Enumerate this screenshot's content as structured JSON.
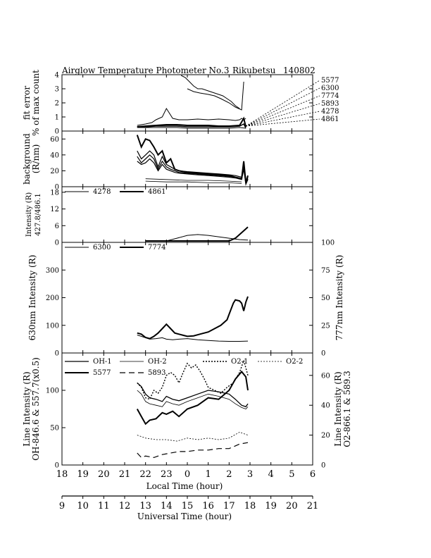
{
  "header": {
    "title": "Airglow Temperature Photometer No.3",
    "station": "Rikubetsu",
    "date": "140802"
  },
  "colors": {
    "ink": "#000000",
    "background": "#ffffff"
  },
  "chart_data": [
    {
      "id": "fit_error",
      "type": "line",
      "ylabel_lines": [
        "fit error",
        "% of max count"
      ],
      "ylim": [
        0,
        4
      ],
      "yticks": [
        "0",
        "1",
        "2",
        "3",
        "4"
      ],
      "grid": false,
      "legend_position": "right",
      "legend_labels": [
        "5577",
        "6300",
        "7774",
        "5893",
        "4278",
        "4861"
      ],
      "series": [
        {
          "name": "5577",
          "x": [
            21.6,
            22.0,
            22.3,
            22.5,
            22.8,
            23.0,
            23.3,
            23.6,
            24.0,
            24.5,
            25.0,
            25.5,
            26.0,
            26.3,
            26.5,
            26.6,
            26.7,
            26.8
          ],
          "y": [
            0.4,
            0.5,
            0.6,
            0.8,
            1.0,
            1.6,
            0.9,
            0.8,
            0.8,
            0.85,
            0.8,
            0.85,
            0.8,
            0.75,
            0.8,
            0.9,
            0.8,
            0.9
          ]
        },
        {
          "name": "6300",
          "x": [
            21.6,
            22.0,
            22.5,
            23.0,
            23.5,
            24.0,
            24.5,
            25.0,
            25.5,
            26.0,
            26.5,
            26.7,
            26.8
          ],
          "y": [
            0.3,
            0.35,
            0.4,
            0.45,
            0.45,
            0.4,
            0.4,
            0.4,
            0.35,
            0.35,
            0.4,
            0.9,
            0.3
          ]
        },
        {
          "name": "7774",
          "x": [
            21.6,
            22.0,
            22.5,
            23.0,
            23.5,
            24.0,
            24.5,
            25.0,
            25.5,
            26.0,
            26.5,
            26.7,
            26.8
          ],
          "y": [
            0.3,
            0.3,
            0.35,
            0.35,
            0.35,
            0.3,
            0.3,
            0.3,
            0.3,
            0.3,
            0.35,
            0.5,
            0.2
          ]
        },
        {
          "name": "5893",
          "x": [
            21.6,
            22.0,
            22.5,
            23.0,
            23.5,
            24.0,
            24.5,
            25.0,
            25.5,
            26.0,
            26.5,
            26.8
          ],
          "y": [
            0.25,
            0.25,
            0.25,
            0.25,
            0.25,
            0.2,
            0.2,
            0.2,
            0.2,
            0.2,
            0.25,
            0.2
          ]
        },
        {
          "name": "4278",
          "x": [
            24.0,
            24.3,
            24.6,
            25.0,
            25.3,
            25.6,
            26.0,
            26.3,
            26.6,
            26.7
          ],
          "y": [
            3.0,
            2.8,
            2.7,
            2.6,
            2.5,
            2.3,
            2.0,
            1.7,
            1.5,
            3.5
          ]
        },
        {
          "name": "4861",
          "x": [
            23.7,
            23.9,
            24.1,
            24.3,
            24.5,
            24.7,
            24.9,
            25.1,
            25.3,
            25.5,
            25.7,
            25.9,
            26.1,
            26.3,
            26.5
          ],
          "y": [
            4.0,
            3.8,
            3.5,
            3.2,
            3.0,
            3.0,
            2.9,
            2.8,
            2.7,
            2.6,
            2.5,
            2.3,
            2.1,
            1.8,
            1.6
          ]
        }
      ]
    },
    {
      "id": "background",
      "type": "line",
      "ylabel_lines": [
        "background",
        "(R/nm)"
      ],
      "ylim": [
        0,
        70
      ],
      "yticks": [
        "0",
        "20",
        "40",
        "60"
      ],
      "grid": false,
      "series": [
        {
          "name": "",
          "x": [
            21.6,
            21.8,
            22.0,
            22.2,
            22.4,
            22.6,
            22.8,
            23.0,
            23.2,
            23.4,
            23.6,
            24.0,
            24.5,
            25.0,
            25.5,
            26.0,
            26.3,
            26.6,
            26.7,
            26.8,
            26.9
          ],
          "y": [
            45,
            35,
            40,
            45,
            40,
            25,
            38,
            28,
            25,
            22,
            20,
            19,
            18,
            17,
            16,
            15,
            14,
            12,
            30,
            5,
            12
          ]
        },
        {
          "name": "",
          "x": [
            21.6,
            21.8,
            22.0,
            22.2,
            22.4,
            22.6,
            22.8,
            23.0,
            23.2,
            23.4,
            23.6,
            24.0,
            24.5,
            25.0,
            25.5,
            26.0,
            26.3,
            26.6,
            26.7,
            26.8,
            26.9
          ],
          "y": [
            38,
            30,
            35,
            40,
            35,
            22,
            32,
            25,
            22,
            20,
            18,
            17,
            16,
            15,
            14,
            13,
            12,
            10,
            25,
            4,
            10
          ]
        },
        {
          "name": "",
          "x": [
            21.6,
            21.8,
            22.0,
            22.2,
            22.4,
            22.6,
            22.8,
            23.0,
            23.2,
            23.4,
            23.6,
            24.0,
            24.5,
            25.0,
            25.5,
            26.0,
            26.3,
            26.6,
            26.7,
            26.8,
            26.9
          ],
          "y": [
            32,
            28,
            30,
            35,
            30,
            20,
            28,
            22,
            20,
            18,
            17,
            16,
            15,
            14,
            13,
            12,
            11,
            9,
            22,
            3,
            9
          ]
        },
        {
          "name": "",
          "x": [
            21.6,
            21.8,
            22.0,
            22.2,
            22.4,
            22.6,
            22.8,
            23.0,
            23.2,
            23.4,
            23.6,
            24.0,
            24.5,
            25.0,
            25.5,
            26.0,
            26.3,
            26.6,
            26.7,
            26.8,
            26.9
          ],
          "y": [
            65,
            50,
            60,
            58,
            50,
            40,
            45,
            30,
            35,
            22,
            20,
            18,
            17,
            16,
            15,
            14,
            12,
            10,
            32,
            5,
            14
          ]
        },
        {
          "name": "",
          "x": [
            22.0,
            23.0,
            24.0,
            25.0,
            26.0,
            26.6
          ],
          "y": [
            10,
            9,
            8,
            8,
            7,
            6
          ]
        },
        {
          "name": "",
          "x": [
            22.0,
            23.0,
            24.0,
            25.0,
            26.0,
            26.6
          ],
          "y": [
            7,
            6,
            6,
            5,
            5,
            4
          ]
        }
      ]
    },
    {
      "id": "blue_intensity",
      "type": "line",
      "ylabel_lines": [
        "Intensity (R)",
        "427.8/486.1"
      ],
      "ylim": [
        0,
        20
      ],
      "yticks": [
        "0",
        "6",
        "12",
        "18"
      ],
      "grid": false,
      "legend_position": "top",
      "series": [
        {
          "name": "4278",
          "x": [
            22.0,
            22.5,
            23.0,
            23.5,
            24.0,
            24.5,
            25.0,
            25.5,
            26.0,
            26.5,
            26.9
          ],
          "y": [
            0.5,
            0.5,
            0.5,
            1.5,
            2.5,
            2.8,
            2.5,
            2.0,
            1.5,
            1.0,
            0.8
          ]
        },
        {
          "name": "4861",
          "x": [
            22.0,
            22.5,
            23.0,
            23.5,
            24.0,
            24.5,
            25.0,
            25.5,
            26.0,
            26.3,
            26.6,
            26.9
          ],
          "y": [
            0.5,
            0.5,
            0.5,
            0.5,
            0.5,
            0.5,
            0.5,
            0.5,
            0.5,
            1.5,
            3.5,
            5.5
          ]
        }
      ]
    },
    {
      "id": "oxygen_red_green",
      "type": "line",
      "ylabel": "630nm Intensity (R)",
      "y2label": "777nm Intensity (R)",
      "ylim": [
        0,
        400
      ],
      "y2lim": [
        0,
        100
      ],
      "yticks": [
        "0",
        "100",
        "200",
        "300"
      ],
      "y2ticks": [
        "0",
        "25",
        "50",
        "75",
        "100"
      ],
      "grid": false,
      "legend_position": "top",
      "series": [
        {
          "name": "6300",
          "x": [
            21.6,
            21.8,
            22.0,
            22.2,
            22.5,
            22.8,
            23.0,
            23.3,
            23.6,
            24.0,
            24.5,
            25.0,
            25.5,
            26.0,
            26.5,
            26.9
          ],
          "y": [
            65,
            60,
            55,
            50,
            52,
            55,
            50,
            48,
            50,
            52,
            48,
            45,
            43,
            42,
            42,
            43
          ]
        },
        {
          "name": "7774",
          "x": [
            21.6,
            21.8,
            22.0,
            22.2,
            22.4,
            22.6,
            22.8,
            23.0,
            23.2,
            23.4,
            23.6,
            23.8,
            24.0,
            24.3,
            24.6,
            25.0,
            25.3,
            25.6,
            25.9,
            26.0,
            26.2,
            26.3,
            26.5,
            26.6,
            26.7,
            26.8,
            26.9
          ],
          "y": [
            18,
            17,
            14,
            13,
            15,
            18,
            22,
            26,
            22,
            18,
            17,
            16,
            15,
            15.5,
            17,
            19,
            22,
            25,
            30,
            35,
            45,
            48,
            47,
            45,
            38,
            46,
            51
          ]
        }
      ]
    },
    {
      "id": "line_intensity",
      "type": "line",
      "ylabel_lines": [
        "Line Intensity (R)",
        "OH-846.6 & 557.7(x0.5)"
      ],
      "y2label_lines": [
        "Line Intensity (R)",
        "O2-866.1 & 589.3"
      ],
      "ylim": [
        0,
        150
      ],
      "y2lim": [
        0,
        75
      ],
      "yticks": [
        "0",
        "50",
        "100"
      ],
      "y2ticks": [
        "0",
        "20",
        "40",
        "60"
      ],
      "grid": false,
      "legend_position": "top",
      "series": [
        {
          "name": "OH-1",
          "x": [
            21.6,
            21.8,
            22.0,
            22.2,
            22.5,
            22.8,
            23.0,
            23.3,
            23.6,
            24.0,
            24.5,
            25.0,
            25.5,
            26.0,
            26.3,
            26.6,
            26.8,
            26.9
          ],
          "y": [
            110,
            105,
            95,
            90,
            88,
            85,
            92,
            88,
            86,
            90,
            95,
            100,
            98,
            95,
            88,
            80,
            78,
            82
          ]
        },
        {
          "name": "OH-2",
          "x": [
            21.6,
            21.8,
            22.0,
            22.2,
            22.5,
            22.8,
            23.0,
            23.3,
            23.6,
            24.0,
            24.5,
            25.0,
            25.5,
            26.0,
            26.3,
            26.6,
            26.8,
            26.9
          ],
          "y": [
            100,
            95,
            85,
            82,
            80,
            78,
            85,
            82,
            80,
            85,
            90,
            95,
            92,
            88,
            82,
            77,
            75,
            78
          ]
        },
        {
          "name": "O2-1",
          "x": [
            21.6,
            21.8,
            22.0,
            22.2,
            22.4,
            22.6,
            22.8,
            23.0,
            23.2,
            23.4,
            23.6,
            23.8,
            24.0,
            24.2,
            24.4,
            24.6,
            24.8,
            25.0,
            25.3,
            25.6,
            25.9,
            26.2,
            26.5,
            26.7,
            26.9
          ],
          "y": [
            55,
            52,
            45,
            44,
            50,
            48,
            52,
            60,
            62,
            60,
            55,
            62,
            68,
            65,
            67,
            63,
            58,
            52,
            50,
            48,
            52,
            55,
            62,
            70,
            60
          ]
        },
        {
          "name": "O2-2",
          "x": [
            21.6,
            22.0,
            22.5,
            23.0,
            23.5,
            24.0,
            24.5,
            25.0,
            25.5,
            26.0,
            26.5,
            26.9
          ],
          "y": [
            20,
            18,
            17,
            17,
            16,
            18,
            17,
            18,
            17,
            18,
            22,
            20
          ]
        },
        {
          "name": "5577",
          "x": [
            21.6,
            21.8,
            22.0,
            22.2,
            22.5,
            22.8,
            23.0,
            23.3,
            23.6,
            24.0,
            24.5,
            25.0,
            25.5,
            26.0,
            26.3,
            26.6,
            26.8,
            26.9
          ],
          "y": [
            75,
            65,
            55,
            60,
            62,
            70,
            68,
            72,
            65,
            75,
            80,
            90,
            88,
            100,
            115,
            125,
            118,
            100
          ]
        },
        {
          "name": "5893",
          "x": [
            21.6,
            21.8,
            22.0,
            22.4,
            22.8,
            23.2,
            23.6,
            24.0,
            24.5,
            25.0,
            25.5,
            26.0,
            26.5,
            26.9
          ],
          "y": [
            8,
            5,
            6,
            5,
            7,
            8,
            9,
            9,
            10,
            10,
            11,
            11,
            14,
            15
          ]
        }
      ]
    }
  ],
  "axes": {
    "local_time_label": "Local Time (hour)",
    "local_time_ticks": [
      "18",
      "19",
      "20",
      "21",
      "22",
      "23",
      "0",
      "1",
      "2",
      "3",
      "4",
      "5",
      "6"
    ],
    "local_time_range": [
      18,
      30
    ],
    "universal_time_label": "Universal Time (hour)",
    "universal_time_ticks": [
      "9",
      "10",
      "11",
      "12",
      "13",
      "14",
      "15",
      "16",
      "17",
      "18",
      "19",
      "20",
      "21"
    ]
  }
}
